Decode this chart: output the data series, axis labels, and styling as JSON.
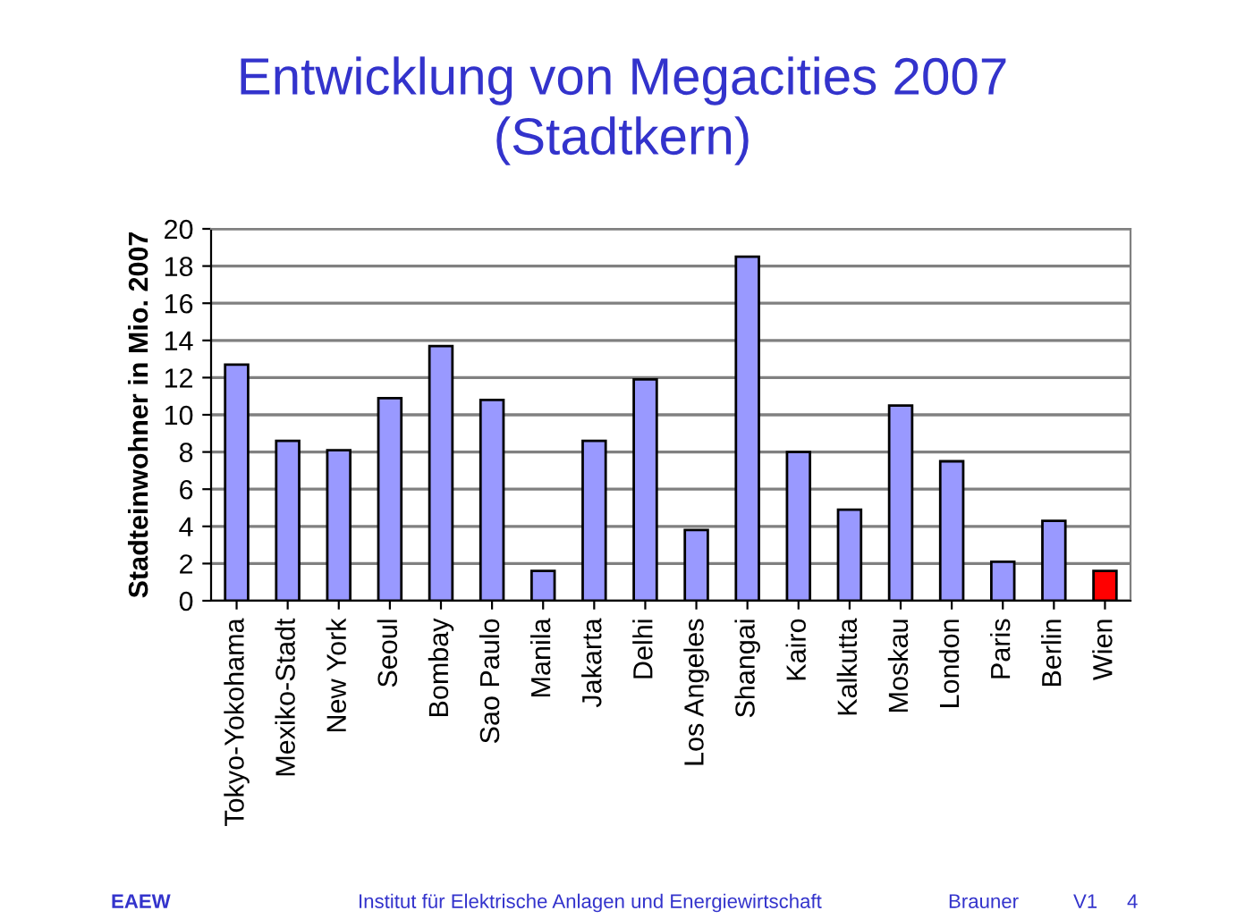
{
  "chart_data": {
    "type": "bar",
    "title": "Entwicklung von Megacities 2007\n(Stadtkern)",
    "ylabel": "Stadteinwohner in Mio. 2007",
    "categories": [
      "Tokyo-Yokohama",
      "Mexiko-Stadt",
      "New York",
      "Seoul",
      "Bombay",
      "Sao Paulo",
      "Manila",
      "Jakarta",
      "Delhi",
      "Los Angeles",
      "Shangai",
      "Kairo",
      "Kalkutta",
      "Moskau",
      "London",
      "Paris",
      "Berlin",
      "Wien"
    ],
    "values": [
      12.7,
      8.6,
      8.1,
      10.9,
      13.7,
      10.8,
      1.6,
      8.6,
      11.9,
      3.8,
      18.5,
      8.0,
      4.9,
      10.5,
      7.5,
      2.1,
      4.3,
      1.6
    ],
    "colors": [
      "#9999ff",
      "#9999ff",
      "#9999ff",
      "#9999ff",
      "#9999ff",
      "#9999ff",
      "#9999ff",
      "#9999ff",
      "#9999ff",
      "#9999ff",
      "#9999ff",
      "#9999ff",
      "#9999ff",
      "#9999ff",
      "#9999ff",
      "#9999ff",
      "#9999ff",
      "#ff0000"
    ],
    "ylim": [
      0,
      20
    ],
    "yticks": [
      0,
      2,
      4,
      6,
      8,
      10,
      12,
      14,
      16,
      18,
      20
    ],
    "grid": "y",
    "annotations": [
      "EAEW",
      "Institut für Elektrische Anlagen und Energiewirtschaft",
      "Brauner",
      "V1",
      "4"
    ]
  }
}
